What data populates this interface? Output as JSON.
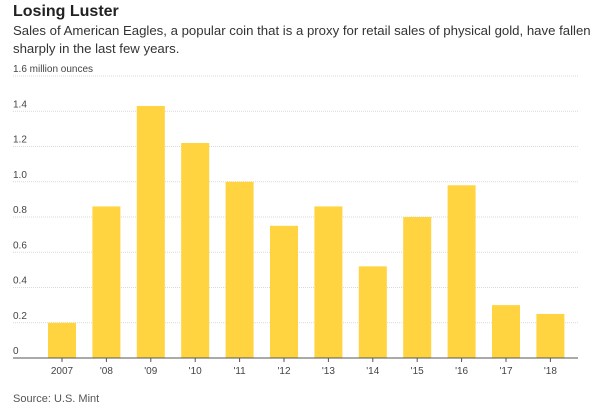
{
  "title": "Losing Luster",
  "subtitle": "Sales of American Eagles, a popular coin that is a proxy for retail sales of physical gold, have fallen sharply in the last few years.",
  "source": "Source: U.S. Mint",
  "colors": {
    "bar": "#FFD440",
    "grid": "#d9d9d9",
    "axis": "#555555"
  },
  "chart_data": {
    "type": "bar",
    "categories": [
      "2007",
      "'08",
      "'09",
      "'10",
      "'11",
      "'12",
      "'13",
      "'14",
      "'15",
      "'16",
      "'17",
      "'18"
    ],
    "values": [
      0.2,
      0.86,
      1.43,
      1.22,
      1.0,
      0.75,
      0.86,
      0.52,
      0.8,
      0.98,
      0.3,
      0.25
    ],
    "ylim": [
      0,
      1.6
    ],
    "yticks": [
      "0",
      "0.2",
      "0.4",
      "0.6",
      "0.8",
      "1.0",
      "1.2",
      "1.4",
      "1.6 million ounces"
    ],
    "grid": true
  }
}
